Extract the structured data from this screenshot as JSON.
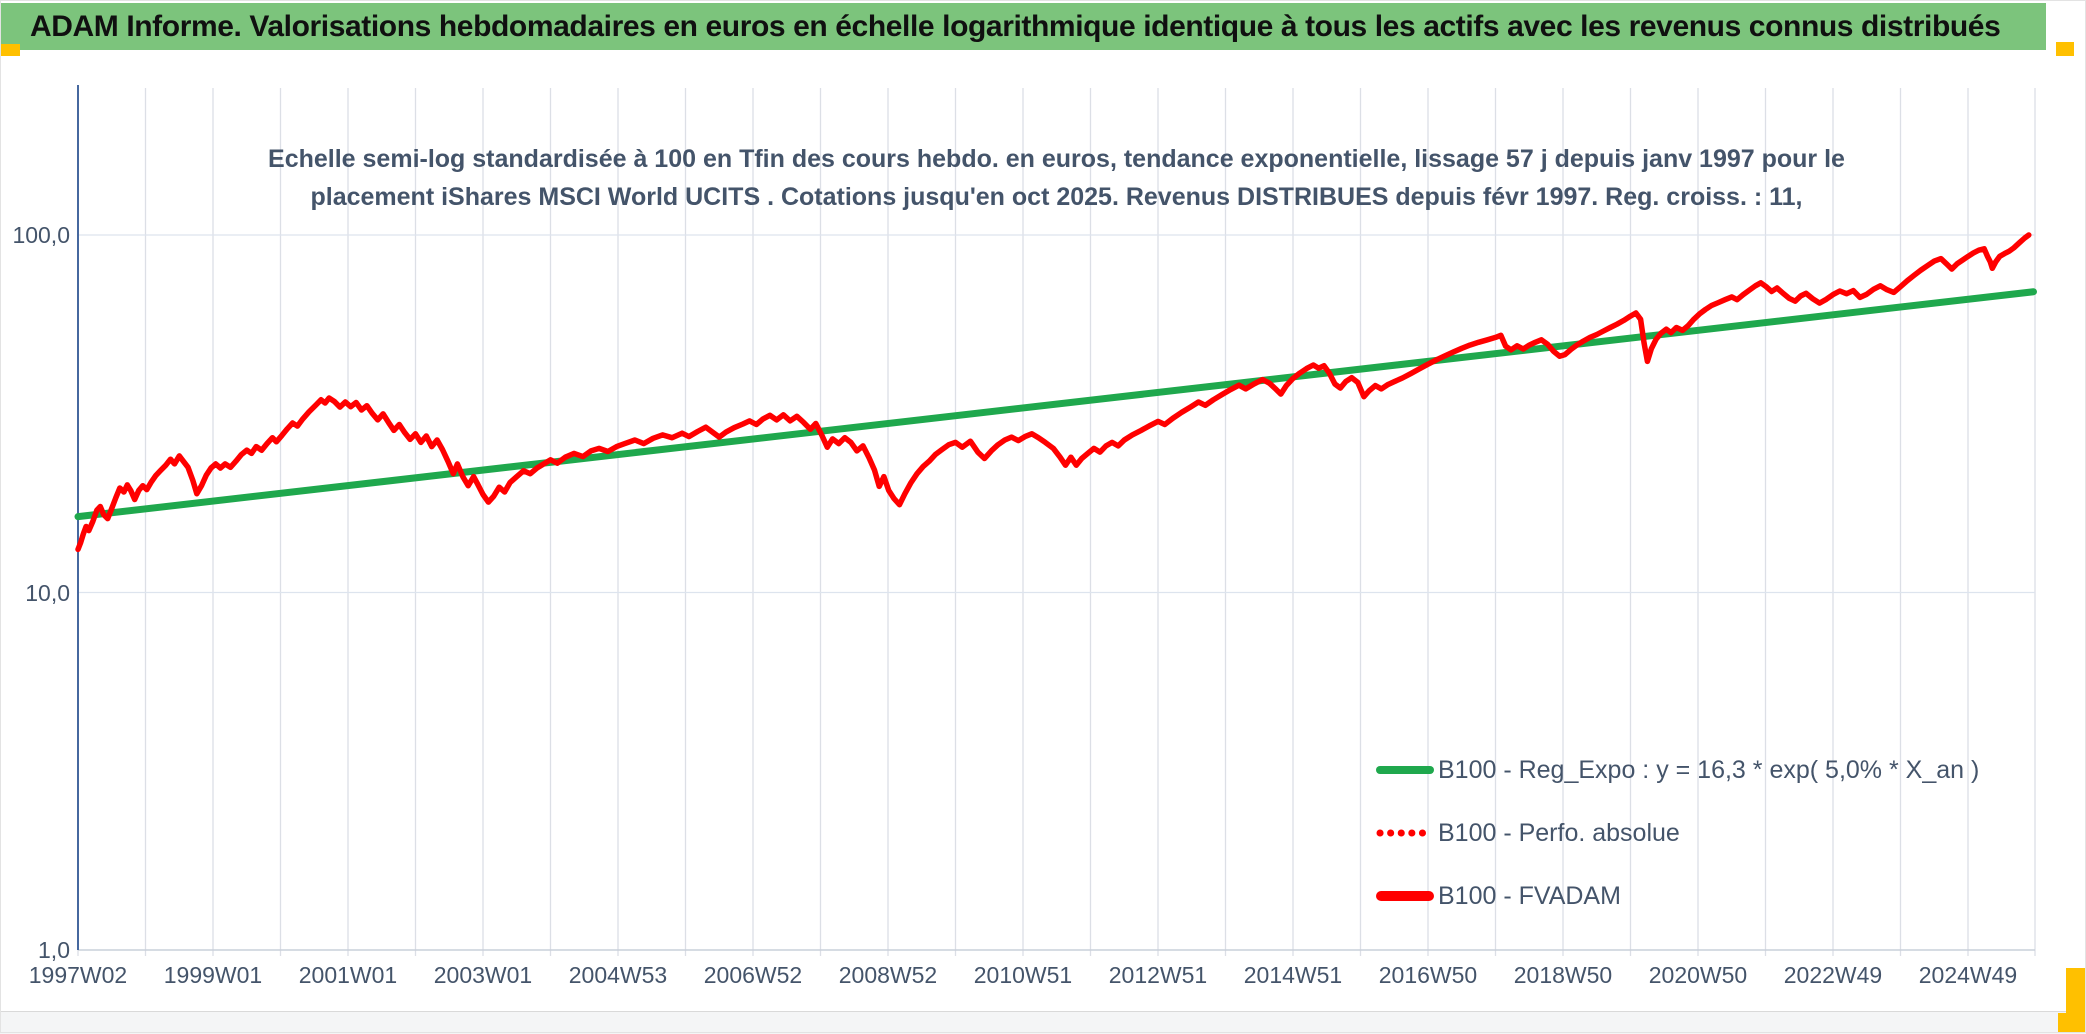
{
  "header": {
    "title": "ADAM Informe. Valorisations hebdomadaires en euros en échelle logarithmique identique à tous les actifs avec les revenus connus distribués"
  },
  "chart": {
    "title_line1": "Echelle semi-log standardisée à 100 en Tfin des cours hebdo. en euros, tendance exponentielle, lissage 57 j depuis janv 1997 pour le",
    "title_line2": "placement iShares MSCI World UCITS . Cotations jusqu'en oct 2025. Revenus DISTRIBUES depuis févr 1997. Reg. croiss. : 11,"
  },
  "legend": {
    "items": [
      {
        "label": "B100 - Reg_Expo : y = 16,3 * exp( 5,0% *  X_an )",
        "style": "solid",
        "color": "#1fa84d"
      },
      {
        "label": "B100 - Perfo. absolue",
        "style": "dotted",
        "color": "#ff0000"
      },
      {
        "label": "B100 - FVADAM",
        "style": "solid-thick",
        "color": "#ff0000"
      }
    ]
  },
  "colors": {
    "header_band": "#7cc47c",
    "gold_accent": "#ffc000",
    "title_text": "#44546a",
    "axis_line": "#46689f",
    "gridline": "#dcdfe6",
    "trend_green": "#1fa84d",
    "series_red": "#ff0000"
  },
  "chart_data": {
    "type": "line",
    "title": "Echelle semi-log standardisée à 100 en Tfin des cours hebdo. en euros, tendance exponentielle, lissage 57 j depuis janv 1997 pour le placement iShares MSCI World UCITS . Cotations jusqu'en oct 2025. Revenus DISTRIBUES depuis févr 1997. Reg. croiss. : 11,",
    "x_axis": {
      "unit": "ISO week (hebdomadaire)",
      "tick_labels": [
        "1997W02",
        "1999W01",
        "2001W01",
        "2003W01",
        "2004W53",
        "2006W52",
        "2008W52",
        "2010W51",
        "2012W51",
        "2014W51",
        "2016W50",
        "2018W50",
        "2020W50",
        "2022W49",
        "2024W49"
      ],
      "labels_every_years": 2,
      "gridlines_every_years": 1,
      "range_years": [
        0,
        29
      ]
    },
    "y_axis": {
      "scale": "log10",
      "tick_labels": [
        "100,0",
        "10,0",
        "1,0"
      ],
      "tick_values": [
        100,
        10,
        1
      ],
      "grid_values": [
        100,
        10
      ],
      "range": [
        1,
        260
      ]
    },
    "legend_position": "inside lower right",
    "series": [
      {
        "name": "B100 - Reg_Expo : y = 16,3 * exp( 5,0% *  X_an )",
        "type": "exponential_trend",
        "base": 16.3,
        "growth_rate_per_year": 0.05,
        "t_range_years": [
          0,
          28.97
        ],
        "color": "#1fa84d",
        "style": "solid"
      },
      {
        "name": "B100 - Perfo. absolue",
        "color": "#ff0000",
        "style": "dotted",
        "coincident_with": "B100 - FVADAM"
      },
      {
        "name": "B100 - FVADAM",
        "color": "#ff0000",
        "style": "solid",
        "x_years": [
          0,
          0.04,
          0.08,
          0.12,
          0.16,
          0.22,
          0.28,
          0.33,
          0.38,
          0.44,
          0.5,
          0.56,
          0.62,
          0.68,
          0.73,
          0.78,
          0.84,
          0.9,
          0.96,
          1.02,
          1.08,
          1.15,
          1.22,
          1.3,
          1.37,
          1.43,
          1.5,
          1.56,
          1.63,
          1.7,
          1.76,
          1.83,
          1.9,
          1.97,
          2.04,
          2.11,
          2.18,
          2.26,
          2.34,
          2.42,
          2.5,
          2.57,
          2.64,
          2.72,
          2.8,
          2.88,
          2.94,
          3.02,
          3.1,
          3.18,
          3.25,
          3.33,
          3.42,
          3.52,
          3.6,
          3.66,
          3.72,
          3.8,
          3.88,
          3.96,
          4.04,
          4.12,
          4.2,
          4.28,
          4.36,
          4.44,
          4.52,
          4.6,
          4.68,
          4.76,
          4.84,
          4.92,
          5,
          5.08,
          5.16,
          5.24,
          5.32,
          5.4,
          5.48,
          5.56,
          5.62,
          5.7,
          5.78,
          5.86,
          5.92,
          6,
          6.08,
          6.16,
          6.24,
          6.32,
          6.4,
          6.5,
          6.6,
          6.7,
          6.8,
          6.9,
          7,
          7.1,
          7.22,
          7.35,
          7.48,
          7.6,
          7.72,
          7.85,
          7.98,
          8.1,
          8.25,
          8.38,
          8.52,
          8.66,
          8.8,
          8.95,
          9.05,
          9.18,
          9.3,
          9.4,
          9.5,
          9.6,
          9.72,
          9.85,
          9.95,
          10.05,
          10.15,
          10.25,
          10.35,
          10.45,
          10.55,
          10.65,
          10.75,
          10.85,
          10.93,
          11.02,
          11.1,
          11.18,
          11.27,
          11.36,
          11.45,
          11.54,
          11.63,
          11.72,
          11.8,
          11.87,
          11.94,
          12.01,
          12.09,
          12.17,
          12.25,
          12.34,
          12.43,
          12.52,
          12.61,
          12.7,
          12.8,
          12.9,
          13,
          13.1,
          13.22,
          13.33,
          13.43,
          13.53,
          13.63,
          13.73,
          13.83,
          13.93,
          14.03,
          14.13,
          14.23,
          14.33,
          14.45,
          14.55,
          14.63,
          14.71,
          14.79,
          14.87,
          14.96,
          15.05,
          15.14,
          15.23,
          15.32,
          15.41,
          15.5,
          15.62,
          15.75,
          15.88,
          16,
          16.1,
          16.22,
          16.35,
          16.48,
          16.6,
          16.7,
          16.82,
          16.95,
          17.08,
          17.2,
          17.3,
          17.42,
          17.55,
          17.65,
          17.75,
          17.82,
          17.9,
          18,
          18.1,
          18.2,
          18.3,
          18.38,
          18.46,
          18.54,
          18.62,
          18.7,
          18.78,
          18.87,
          18.96,
          19.05,
          19.13,
          19.22,
          19.31,
          19.4,
          19.5,
          19.62,
          19.75,
          19.88,
          20,
          20.12,
          20.25,
          20.38,
          20.5,
          20.62,
          20.75,
          20.88,
          21,
          21.08,
          21.15,
          21.23,
          21.32,
          21.41,
          21.5,
          21.59,
          21.68,
          21.77,
          21.86,
          21.95,
          22.03,
          22.12,
          22.21,
          22.3,
          22.4,
          22.5,
          22.6,
          22.7,
          22.8,
          22.9,
          23,
          23.08,
          23.15,
          23.2,
          23.25,
          23.31,
          23.38,
          23.45,
          23.53,
          23.6,
          23.68,
          23.77,
          23.85,
          23.93,
          24.02,
          24.11,
          24.2,
          24.3,
          24.4,
          24.5,
          24.58,
          24.67,
          24.76,
          24.85,
          24.93,
          25.01,
          25.09,
          25.17,
          25.26,
          25.35,
          25.44,
          25.52,
          25.6,
          25.7,
          25.8,
          25.9,
          26,
          26.1,
          26.2,
          26.3,
          26.4,
          26.5,
          26.6,
          26.7,
          26.8,
          26.9,
          27,
          27.1,
          27.2,
          27.3,
          27.4,
          27.5,
          27.6,
          27.68,
          27.76,
          27.84,
          27.92,
          28,
          28.08,
          28.16,
          28.24,
          28.29,
          28.33,
          28.36,
          28.41,
          28.47,
          28.54,
          28.61,
          28.68,
          28.76,
          28.84,
          28.9
        ],
        "values": [
          13.2,
          13.8,
          14.6,
          15.3,
          14.9,
          15.8,
          17,
          17.4,
          16.5,
          16.1,
          17.2,
          18.4,
          19.6,
          19.1,
          20,
          19.3,
          18.2,
          19.3,
          19.9,
          19.4,
          20.3,
          21.2,
          21.9,
          22.7,
          23.6,
          22.9,
          24.1,
          23.3,
          22.4,
          20.6,
          18.9,
          19.9,
          21.3,
          22.3,
          22.9,
          22.3,
          22.9,
          22.4,
          23.3,
          24.3,
          25,
          24.5,
          25.6,
          25,
          26.1,
          27.1,
          26.4,
          27.5,
          28.7,
          29.8,
          29.2,
          30.6,
          32,
          33.4,
          34.6,
          33.9,
          35,
          34.2,
          33,
          34.1,
          33.1,
          34,
          32.4,
          33.3,
          31.7,
          30.4,
          31.6,
          29.9,
          28.4,
          29.5,
          28,
          26.8,
          27.8,
          26.3,
          27.4,
          25.6,
          26.7,
          25.1,
          23.3,
          21.5,
          22.9,
          21.1,
          19.9,
          21.1,
          20.1,
          18.8,
          17.9,
          18.6,
          19.7,
          19.1,
          20.3,
          21.1,
          21.9,
          21.5,
          22.3,
          22.9,
          23.5,
          23,
          23.9,
          24.5,
          24,
          24.9,
          25.3,
          24.8,
          25.6,
          26.1,
          26.7,
          26.1,
          27,
          27.6,
          27.1,
          27.9,
          27.3,
          28.2,
          29,
          28.1,
          27.2,
          28.1,
          28.9,
          29.6,
          30.2,
          29.5,
          30.6,
          31.3,
          30.4,
          31.4,
          30.2,
          31.1,
          29.9,
          28.6,
          29.7,
          27.5,
          25.5,
          26.9,
          26.1,
          27.1,
          26.3,
          24.9,
          25.7,
          23.8,
          22,
          19.8,
          21.1,
          19.3,
          18.3,
          17.6,
          18.9,
          20.3,
          21.5,
          22.5,
          23.3,
          24.3,
          25.1,
          25.9,
          26.3,
          25.5,
          26.5,
          24.7,
          23.7,
          24.9,
          25.9,
          26.7,
          27.2,
          26.6,
          27.3,
          27.8,
          27.1,
          26.3,
          25.3,
          23.9,
          22.7,
          23.9,
          22.7,
          23.7,
          24.5,
          25.3,
          24.7,
          25.7,
          26.3,
          25.7,
          26.7,
          27.6,
          28.4,
          29.3,
          30.1,
          29.5,
          30.7,
          31.9,
          33,
          34.1,
          33.4,
          34.6,
          35.8,
          37,
          38,
          37.1,
          38.3,
          39.4,
          38.5,
          37,
          35.9,
          37.9,
          39.7,
          41.1,
          42.3,
          43.3,
          42.4,
          43.1,
          41,
          38.3,
          37.3,
          38.9,
          39.9,
          38.7,
          35.3,
          36.7,
          37.9,
          37.1,
          38.1,
          38.9,
          39.8,
          41,
          42.3,
          43.5,
          44.7,
          45.9,
          47.1,
          48.2,
          49.2,
          50.1,
          50.9,
          51.7,
          52.4,
          48.9,
          47.7,
          49,
          48,
          49.2,
          50.1,
          50.9,
          49.5,
          47.3,
          45.8,
          46.3,
          47.9,
          49.3,
          50.5,
          51.7,
          52.7,
          53.9,
          55.1,
          56.3,
          57.7,
          59.3,
          60.5,
          58.1,
          50,
          44.3,
          48.1,
          51.1,
          53.1,
          54.5,
          53.3,
          55.1,
          54.1,
          55.7,
          57.9,
          60.1,
          61.9,
          63.5,
          64.7,
          65.9,
          67.1,
          65.9,
          68.1,
          70.1,
          72.1,
          73.5,
          71.7,
          69.5,
          71.1,
          68.7,
          66.5,
          65.3,
          67.5,
          68.7,
          66.3,
          64.5,
          66.1,
          68.1,
          69.7,
          68.5,
          69.9,
          66.9,
          68.3,
          70.5,
          72.1,
          70.3,
          69.1,
          71.7,
          74.5,
          77.1,
          79.7,
          82.1,
          84.5,
          85.9,
          83.1,
          80.3,
          83.1,
          85.1,
          87.1,
          89.1,
          90.7,
          91.5,
          87,
          84.1,
          80.7,
          84.1,
          87.1,
          88.7,
          90.1,
          92.1,
          95.1,
          98.1,
          100
        ]
      }
    ]
  }
}
